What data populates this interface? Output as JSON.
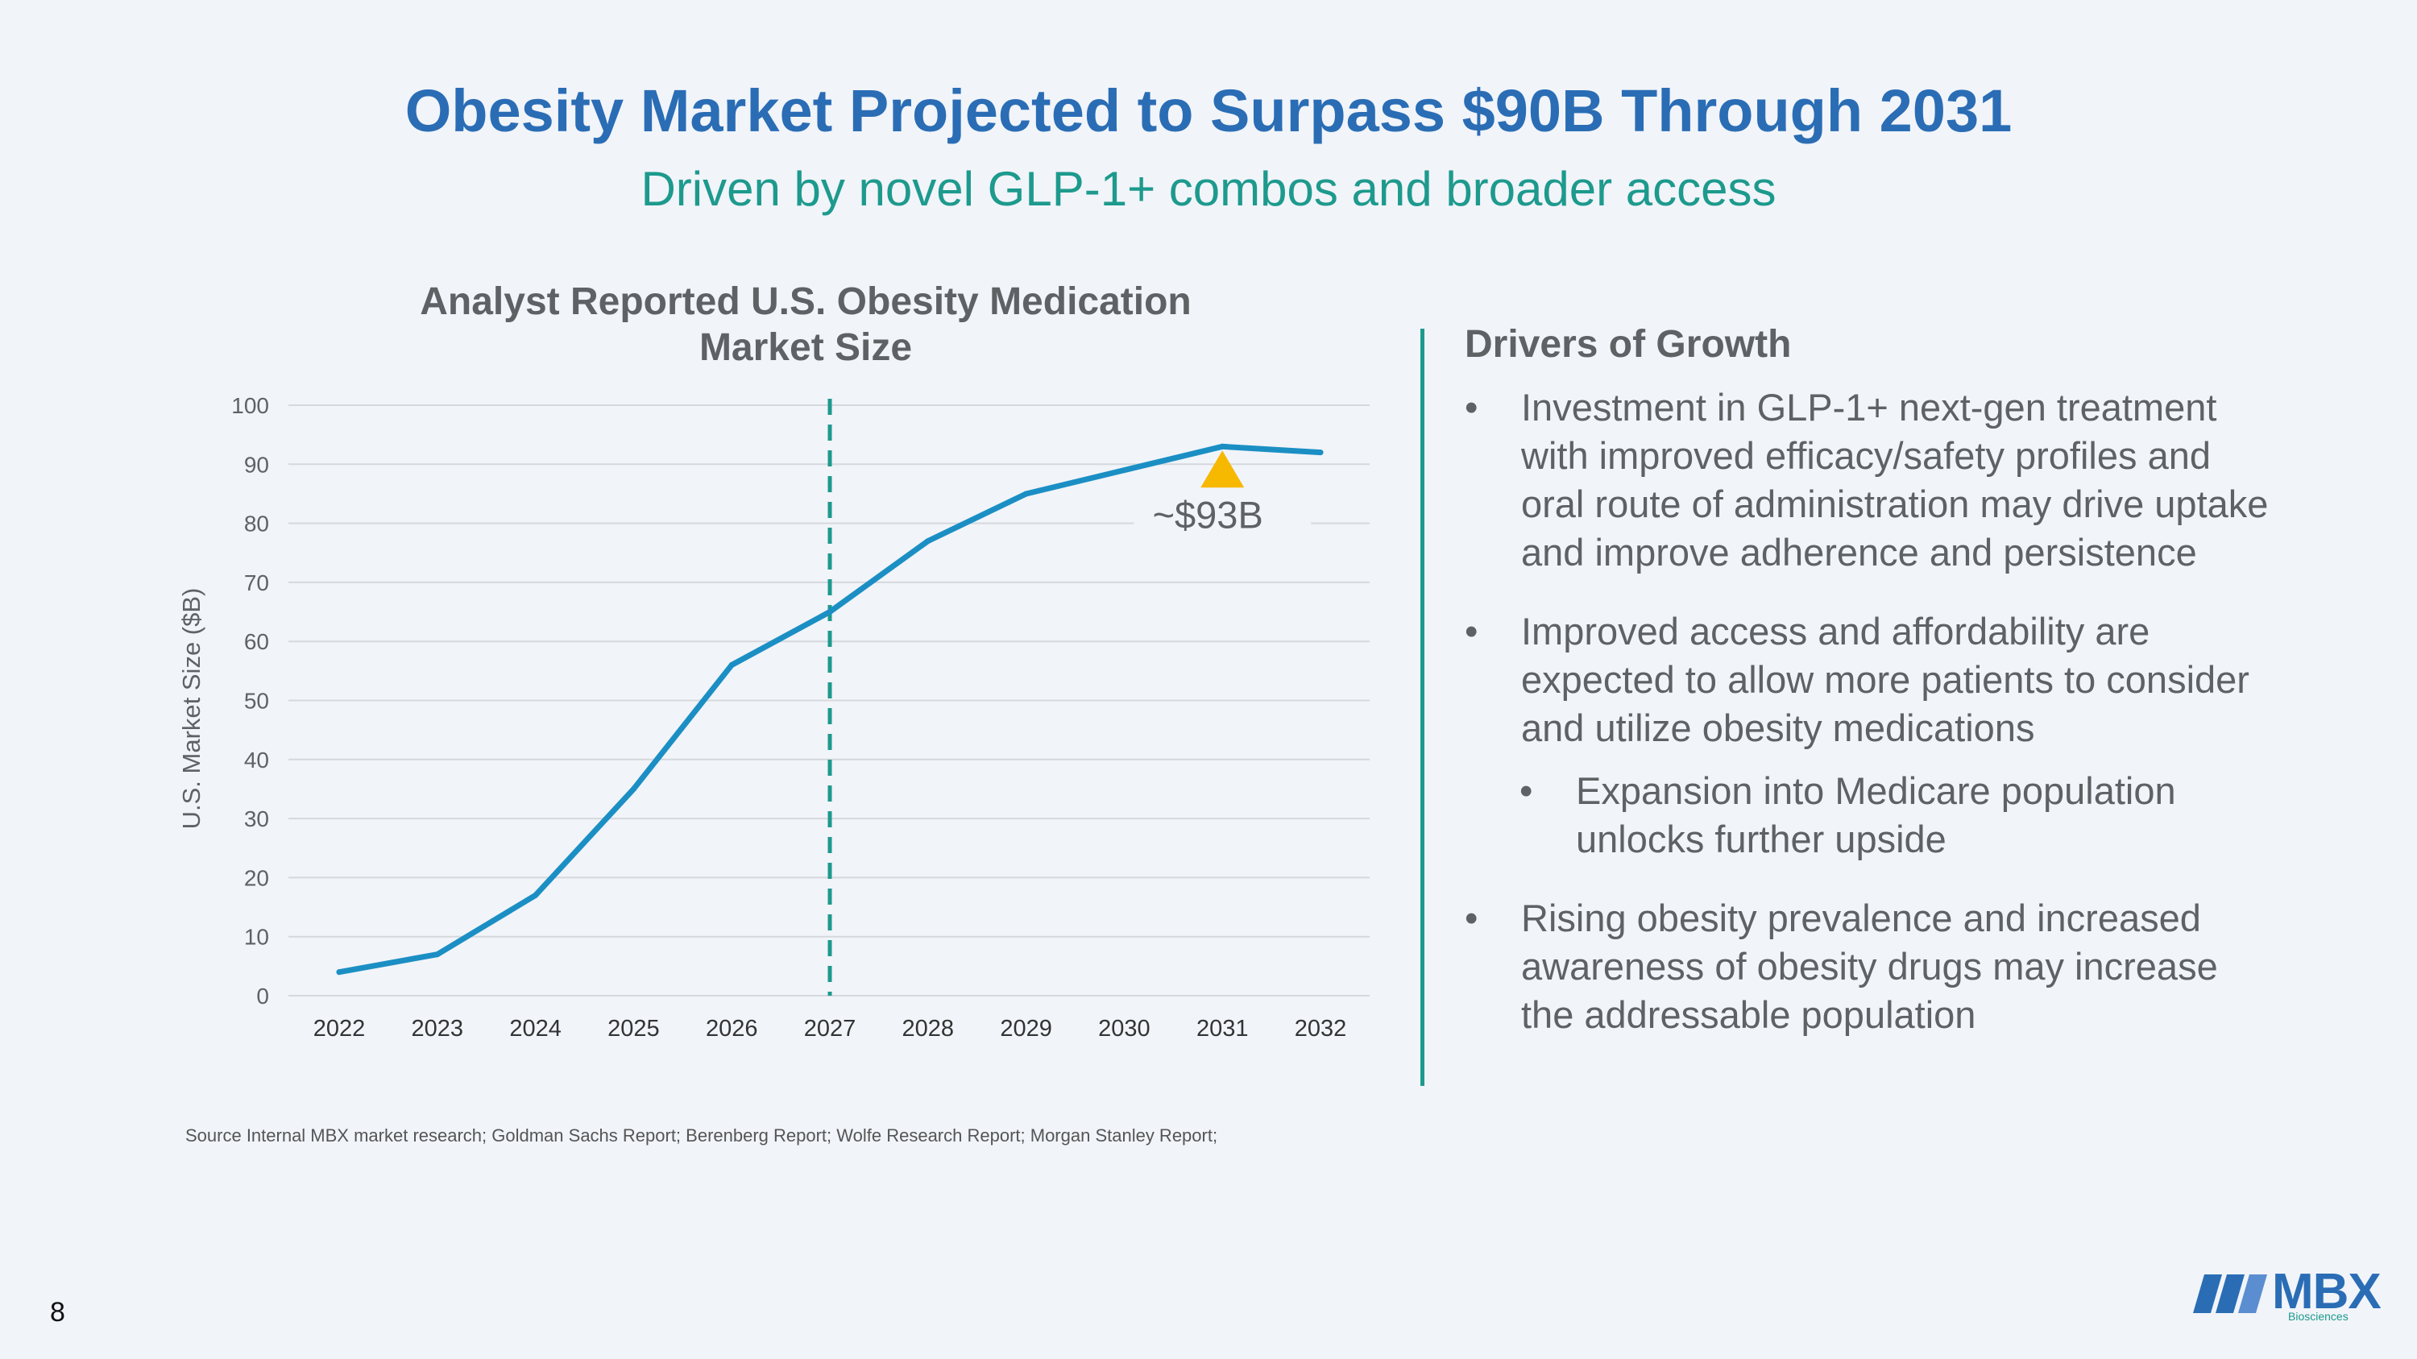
{
  "slide": {
    "title": "Obesity Market Projected to Surpass $90B Through 2031",
    "subtitle": "Driven by novel GLP-1+ combos and broader access",
    "page_number": "8"
  },
  "chart_data": {
    "type": "line",
    "title_line1": "Analyst Reported U.S. Obesity Medication",
    "title_line2": "Market Size",
    "ylabel": "U.S. Market Size ($B)",
    "xlabel": "",
    "x": [
      "2022",
      "2023",
      "2024",
      "2025",
      "2026",
      "2027",
      "2028",
      "2029",
      "2030",
      "2031",
      "2032"
    ],
    "series": [
      {
        "values": [
          4,
          7,
          17,
          35,
          56,
          65,
          77,
          85,
          89,
          93,
          92
        ]
      }
    ],
    "ylim": [
      0,
      100
    ],
    "yticks": [
      0,
      10,
      20,
      30,
      40,
      50,
      60,
      70,
      80,
      90,
      100
    ],
    "grid": true,
    "vline_at": "2027",
    "peak_year": "2031",
    "annotation_label": "~$93B",
    "line_color": "#1b8fc4",
    "vline_color": "#1d9a8d",
    "marker_color": "#f7b800",
    "grid_color": "#d5d8dc"
  },
  "source": "Source Internal MBX market research; Goldman Sachs Report; Berenberg Report; Wolfe Research Report; Morgan Stanley Report;",
  "drivers": {
    "heading": "Drivers of Growth",
    "bullet_symbol": "•",
    "bullets": [
      "Investment in GLP-1+ next-gen treatment with improved efficacy/safety profiles and oral route of administration may drive uptake and improve adherence and persistence",
      "Improved access and affordability are expected to allow more patients to consider and utilize obesity medications",
      "Rising obesity prevalence and increased awareness of obesity drugs may increase the addressable population"
    ],
    "sub_bullet": "Expansion into Medicare population unlocks further upside"
  },
  "logo": {
    "text": "MBX",
    "subtext": "Biosciences"
  }
}
